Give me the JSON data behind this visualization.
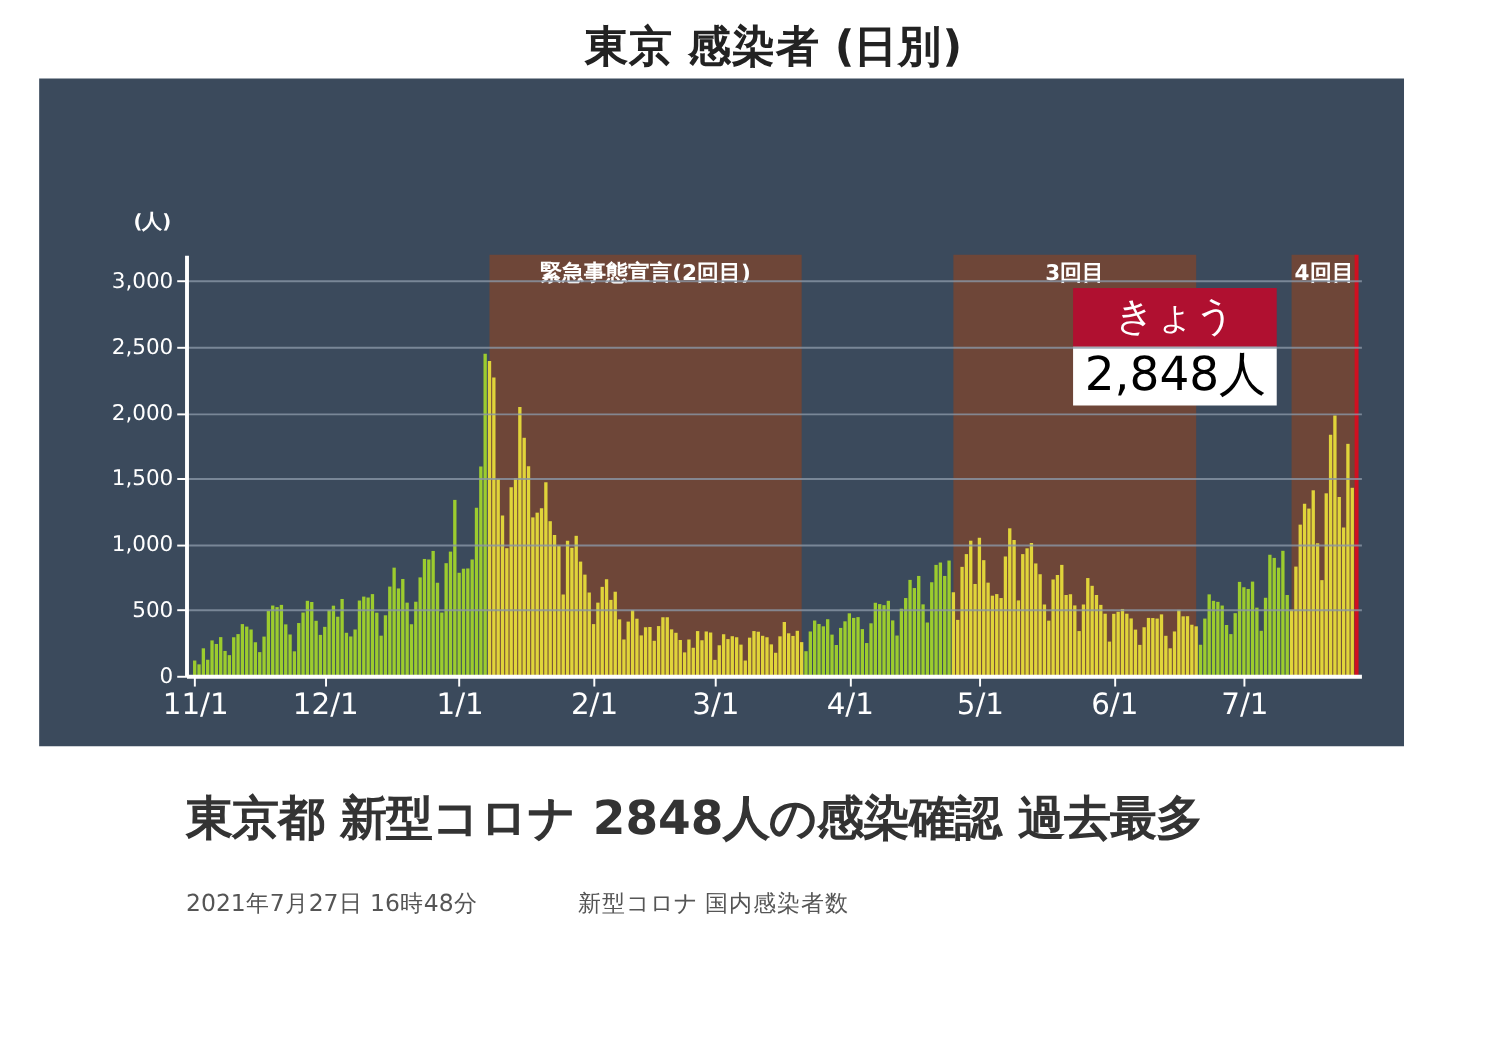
{
  "chart_data": {
    "type": "bar",
    "title": "東京 感染者 (日別)",
    "ylabel": "(人)",
    "x": [
      "2020-11-01",
      "2020-11-02",
      "2020-11-03",
      "2020-11-04",
      "2020-11-05",
      "2020-11-06",
      "2020-11-07",
      "2020-11-08",
      "2020-11-09",
      "2020-11-10",
      "2020-11-11",
      "2020-11-12",
      "2020-11-13",
      "2020-11-14",
      "2020-11-15",
      "2020-11-16",
      "2020-11-17",
      "2020-11-18",
      "2020-11-19",
      "2020-11-20",
      "2020-11-21",
      "2020-11-22",
      "2020-11-23",
      "2020-11-24",
      "2020-11-25",
      "2020-11-26",
      "2020-11-27",
      "2020-11-28",
      "2020-11-29",
      "2020-11-30",
      "2020-12-01",
      "2020-12-02",
      "2020-12-03",
      "2020-12-04",
      "2020-12-05",
      "2020-12-06",
      "2020-12-07",
      "2020-12-08",
      "2020-12-09",
      "2020-12-10",
      "2020-12-11",
      "2020-12-12",
      "2020-12-13",
      "2020-12-14",
      "2020-12-15",
      "2020-12-16",
      "2020-12-17",
      "2020-12-18",
      "2020-12-19",
      "2020-12-20",
      "2020-12-21",
      "2020-12-22",
      "2020-12-23",
      "2020-12-24",
      "2020-12-25",
      "2020-12-26",
      "2020-12-27",
      "2020-12-28",
      "2020-12-29",
      "2020-12-30",
      "2020-12-31",
      "2021-01-01",
      "2021-01-02",
      "2021-01-03",
      "2021-01-04",
      "2021-01-05",
      "2021-01-06",
      "2021-01-07",
      "2021-01-08",
      "2021-01-09",
      "2021-01-10",
      "2021-01-11",
      "2021-01-12",
      "2021-01-13",
      "2021-01-14",
      "2021-01-15",
      "2021-01-16",
      "2021-01-17",
      "2021-01-18",
      "2021-01-19",
      "2021-01-20",
      "2021-01-21",
      "2021-01-22",
      "2021-01-23",
      "2021-01-24",
      "2021-01-25",
      "2021-01-26",
      "2021-01-27",
      "2021-01-28",
      "2021-01-29",
      "2021-01-30",
      "2021-01-31",
      "2021-02-01",
      "2021-02-02",
      "2021-02-03",
      "2021-02-04",
      "2021-02-05",
      "2021-02-06",
      "2021-02-07",
      "2021-02-08",
      "2021-02-09",
      "2021-02-10",
      "2021-02-11",
      "2021-02-12",
      "2021-02-13",
      "2021-02-14",
      "2021-02-15",
      "2021-02-16",
      "2021-02-17",
      "2021-02-18",
      "2021-02-19",
      "2021-02-20",
      "2021-02-21",
      "2021-02-22",
      "2021-02-23",
      "2021-02-24",
      "2021-02-25",
      "2021-02-26",
      "2021-02-27",
      "2021-02-28",
      "2021-03-01",
      "2021-03-02",
      "2021-03-03",
      "2021-03-04",
      "2021-03-05",
      "2021-03-06",
      "2021-03-07",
      "2021-03-08",
      "2021-03-09",
      "2021-03-10",
      "2021-03-11",
      "2021-03-12",
      "2021-03-13",
      "2021-03-14",
      "2021-03-15",
      "2021-03-16",
      "2021-03-17",
      "2021-03-18",
      "2021-03-19",
      "2021-03-20",
      "2021-03-21",
      "2021-03-22",
      "2021-03-23",
      "2021-03-24",
      "2021-03-25",
      "2021-03-26",
      "2021-03-27",
      "2021-03-28",
      "2021-03-29",
      "2021-03-30",
      "2021-03-31",
      "2021-04-01",
      "2021-04-02",
      "2021-04-03",
      "2021-04-04",
      "2021-04-05",
      "2021-04-06",
      "2021-04-07",
      "2021-04-08",
      "2021-04-09",
      "2021-04-10",
      "2021-04-11",
      "2021-04-12",
      "2021-04-13",
      "2021-04-14",
      "2021-04-15",
      "2021-04-16",
      "2021-04-17",
      "2021-04-18",
      "2021-04-19",
      "2021-04-20",
      "2021-04-21",
      "2021-04-22",
      "2021-04-23",
      "2021-04-24",
      "2021-04-25",
      "2021-04-26",
      "2021-04-27",
      "2021-04-28",
      "2021-04-29",
      "2021-04-30",
      "2021-05-01",
      "2021-05-02",
      "2021-05-03",
      "2021-05-04",
      "2021-05-05",
      "2021-05-06",
      "2021-05-07",
      "2021-05-08",
      "2021-05-09",
      "2021-05-10",
      "2021-05-11",
      "2021-05-12",
      "2021-05-13",
      "2021-05-14",
      "2021-05-15",
      "2021-05-16",
      "2021-05-17",
      "2021-05-18",
      "2021-05-19",
      "2021-05-20",
      "2021-05-21",
      "2021-05-22",
      "2021-05-23",
      "2021-05-24",
      "2021-05-25",
      "2021-05-26",
      "2021-05-27",
      "2021-05-28",
      "2021-05-29",
      "2021-05-30",
      "2021-05-31",
      "2021-06-01",
      "2021-06-02",
      "2021-06-03",
      "2021-06-04",
      "2021-06-05",
      "2021-06-06",
      "2021-06-07",
      "2021-06-08",
      "2021-06-09",
      "2021-06-10",
      "2021-06-11",
      "2021-06-12",
      "2021-06-13",
      "2021-06-14",
      "2021-06-15",
      "2021-06-16",
      "2021-06-17",
      "2021-06-18",
      "2021-06-19",
      "2021-06-20",
      "2021-06-21",
      "2021-06-22",
      "2021-06-23",
      "2021-06-24",
      "2021-06-25",
      "2021-06-26",
      "2021-06-27",
      "2021-06-28",
      "2021-06-29",
      "2021-06-30",
      "2021-07-01",
      "2021-07-02",
      "2021-07-03",
      "2021-07-04",
      "2021-07-05",
      "2021-07-06",
      "2021-07-07",
      "2021-07-08",
      "2021-07-09",
      "2021-07-10",
      "2021-07-11",
      "2021-07-12",
      "2021-07-13",
      "2021-07-14",
      "2021-07-15",
      "2021-07-16",
      "2021-07-17",
      "2021-07-18",
      "2021-07-19",
      "2021-07-20",
      "2021-07-21",
      "2021-07-22",
      "2021-07-23",
      "2021-07-24",
      "2021-07-25",
      "2021-07-26"
    ],
    "values": [
      116,
      87,
      209,
      122,
      269,
      242,
      294,
      189,
      157,
      293,
      317,
      393,
      374,
      352,
      255,
      180,
      298,
      493,
      534,
      522,
      539,
      391,
      314,
      186,
      401,
      481,
      570,
      561,
      418,
      311,
      372,
      500,
      533,
      449,
      584,
      327,
      299,
      352,
      572,
      602,
      595,
      621,
      480,
      305,
      460,
      678,
      822,
      664,
      736,
      556,
      392,
      563,
      748,
      888,
      884,
      949,
      708,
      481,
      856,
      944,
      1337,
      783,
      814,
      816,
      884,
      1278,
      1591,
      2447,
      2392,
      2268,
      1494,
      1219,
      970,
      1433,
      1502,
      2044,
      1809,
      1592,
      1204,
      1240,
      1274,
      1471,
      1175,
      1070,
      986,
      618,
      1026,
      973,
      1064,
      868,
      769,
      633,
      393,
      556,
      676,
      734,
      577,
      639,
      429,
      276,
      412,
      500,
      434,
      307,
      369,
      371,
      266,
      378,
      445,
      445,
      353,
      327,
      272,
      178,
      275,
      213,
      340,
      270,
      337,
      329,
      121,
      232,
      316,
      279,
      301,
      293,
      237,
      116,
      290,
      340,
      335,
      304,
      293,
      239,
      175,
      300,
      409,
      323,
      303,
      342,
      256,
      187,
      337,
      420,
      394,
      376,
      430,
      313,
      234,
      364,
      414,
      475,
      440,
      446,
      355,
      249,
      399,
      555,
      545,
      537,
      570,
      421,
      306,
      510,
      591,
      729,
      667,
      759,
      543,
      405,
      711,
      843,
      861,
      759,
      876,
      635,
      425,
      828,
      925,
      1027,
      698,
      1050,
      879,
      708,
      609,
      621,
      591,
      907,
      1121,
      1032,
      573,
      925,
      969,
      1010,
      854,
      772,
      542,
      419,
      732,
      766,
      843,
      614,
      620,
      535,
      340,
      542,
      743,
      684,
      614,
      539,
      472,
      260,
      471,
      487,
      508,
      472,
      436,
      351,
      235,
      369,
      440,
      439,
      435,
      467,
      304,
      209,
      337,
      501,
      452,
      453,
      388,
      376,
      236,
      435,
      619,
      570,
      562,
      534,
      386,
      317,
      476,
      714,
      673,
      660,
      716,
      518,
      342,
      593,
      920,
      896,
      822,
      950,
      614,
      502,
      830,
      1149,
      1308,
      1271,
      1410,
      1008,
      727,
      1387,
      1832,
      1979,
      1359,
      1128,
      1763,
      1429
    ],
    "colors": [
      "#9ccc2e",
      "#9ccc2e",
      "#9ccc2e",
      "#9ccc2e",
      "#9ccc2e",
      "#9ccc2e",
      "#9ccc2e",
      "#9ccc2e",
      "#9ccc2e",
      "#9ccc2e",
      "#9ccc2e",
      "#9ccc2e",
      "#9ccc2e",
      "#9ccc2e",
      "#9ccc2e",
      "#9ccc2e",
      "#9ccc2e",
      "#9ccc2e",
      "#9ccc2e",
      "#9ccc2e",
      "#9ccc2e",
      "#9ccc2e",
      "#9ccc2e",
      "#9ccc2e",
      "#9ccc2e",
      "#9ccc2e",
      "#9ccc2e",
      "#9ccc2e",
      "#9ccc2e",
      "#9ccc2e",
      "#9ccc2e",
      "#9ccc2e",
      "#9ccc2e",
      "#9ccc2e",
      "#9ccc2e",
      "#9ccc2e",
      "#9ccc2e",
      "#9ccc2e",
      "#9ccc2e",
      "#9ccc2e",
      "#9ccc2e",
      "#9ccc2e",
      "#9ccc2e",
      "#9ccc2e",
      "#9ccc2e",
      "#9ccc2e",
      "#9ccc2e",
      "#9ccc2e",
      "#9ccc2e",
      "#9ccc2e",
      "#9ccc2e",
      "#9ccc2e",
      "#9ccc2e",
      "#9ccc2e",
      "#9ccc2e",
      "#9ccc2e",
      "#9ccc2e",
      "#9ccc2e",
      "#9ccc2e",
      "#9ccc2e",
      "#9ccc2e",
      "#9ccc2e",
      "#9ccc2e",
      "#9ccc2e",
      "#9ccc2e",
      "#9ccc2e",
      "#9ccc2e",
      "#9ccc2e",
      "#e0d43a",
      "#e0d43a",
      "#e0d43a",
      "#e0d43a",
      "#e0d43a",
      "#e0d43a",
      "#e0d43a",
      "#e0d43a",
      "#e0d43a",
      "#e0d43a",
      "#e0d43a",
      "#e0d43a",
      "#e0d43a",
      "#e0d43a",
      "#e0d43a",
      "#e0d43a",
      "#e0d43a",
      "#e0d43a",
      "#e0d43a",
      "#e0d43a",
      "#e0d43a",
      "#e0d43a",
      "#e0d43a",
      "#e0d43a",
      "#e0d43a",
      "#e0d43a",
      "#e0d43a",
      "#e0d43a",
      "#e0d43a",
      "#e0d43a",
      "#e0d43a",
      "#e0d43a",
      "#e0d43a",
      "#e0d43a",
      "#e0d43a",
      "#e0d43a",
      "#e0d43a",
      "#e0d43a",
      "#e0d43a",
      "#e0d43a",
      "#e0d43a",
      "#e0d43a",
      "#e0d43a",
      "#e0d43a",
      "#e0d43a",
      "#e0d43a",
      "#e0d43a",
      "#e0d43a",
      "#e0d43a",
      "#e0d43a",
      "#e0d43a",
      "#e0d43a",
      "#e0d43a",
      "#e0d43a",
      "#e0d43a",
      "#e0d43a",
      "#e0d43a",
      "#e0d43a",
      "#e0d43a",
      "#e0d43a",
      "#e0d43a",
      "#e0d43a",
      "#e0d43a",
      "#e0d43a",
      "#e0d43a",
      "#e0d43a",
      "#e0d43a",
      "#e0d43a",
      "#e0d43a",
      "#e0d43a",
      "#e0d43a",
      "#e0d43a",
      "#e0d43a",
      "#9ccc2e",
      "#9ccc2e",
      "#9ccc2e",
      "#9ccc2e",
      "#9ccc2e",
      "#9ccc2e",
      "#9ccc2e",
      "#9ccc2e",
      "#9ccc2e",
      "#9ccc2e",
      "#9ccc2e",
      "#9ccc2e",
      "#9ccc2e",
      "#9ccc2e",
      "#9ccc2e",
      "#9ccc2e",
      "#9ccc2e",
      "#9ccc2e",
      "#9ccc2e",
      "#9ccc2e",
      "#9ccc2e",
      "#9ccc2e",
      "#9ccc2e",
      "#9ccc2e",
      "#9ccc2e",
      "#9ccc2e",
      "#9ccc2e",
      "#9ccc2e",
      "#9ccc2e",
      "#9ccc2e",
      "#9ccc2e",
      "#9ccc2e",
      "#9ccc2e",
      "#9ccc2e",
      "#e0d43a",
      "#e0d43a",
      "#e0d43a",
      "#e0d43a",
      "#e0d43a",
      "#e0d43a",
      "#e0d43a",
      "#e0d43a",
      "#e0d43a",
      "#e0d43a",
      "#e0d43a",
      "#e0d43a",
      "#e0d43a",
      "#e0d43a",
      "#e0d43a",
      "#e0d43a",
      "#e0d43a",
      "#e0d43a",
      "#e0d43a",
      "#e0d43a",
      "#e0d43a",
      "#e0d43a",
      "#e0d43a",
      "#e0d43a",
      "#e0d43a",
      "#e0d43a",
      "#e0d43a",
      "#e0d43a",
      "#e0d43a",
      "#e0d43a",
      "#e0d43a",
      "#e0d43a",
      "#e0d43a",
      "#e0d43a",
      "#e0d43a",
      "#e0d43a",
      "#e0d43a",
      "#e0d43a",
      "#e0d43a",
      "#e0d43a",
      "#e0d43a",
      "#e0d43a",
      "#e0d43a",
      "#e0d43a",
      "#e0d43a",
      "#e0d43a",
      "#e0d43a",
      "#e0d43a",
      "#e0d43a",
      "#e0d43a",
      "#e0d43a",
      "#e0d43a",
      "#e0d43a",
      "#e0d43a",
      "#e0d43a",
      "#e0d43a",
      "#e0d43a",
      "#9ccc2e",
      "#9ccc2e",
      "#9ccc2e",
      "#9ccc2e",
      "#9ccc2e",
      "#9ccc2e",
      "#9ccc2e",
      "#9ccc2e",
      "#9ccc2e",
      "#9ccc2e",
      "#9ccc2e",
      "#9ccc2e",
      "#9ccc2e",
      "#9ccc2e",
      "#9ccc2e",
      "#9ccc2e",
      "#9ccc2e",
      "#9ccc2e",
      "#9ccc2e",
      "#9ccc2e",
      "#9ccc2e",
      "#e0d43a",
      "#e0d43a",
      "#e0d43a",
      "#e0d43a",
      "#e0d43a",
      "#e0d43a",
      "#e0d43a",
      "#e0d43a",
      "#e0d43a",
      "#e0d43a",
      "#e0d43a",
      "#e0d43a",
      "#e0d43a",
      "#e0d43a",
      "#e0d43a"
    ],
    "xlim": [
      "2020-10-30",
      "2021-07-28"
    ],
    "xticks": [
      {
        "value": "2020-11-01",
        "label": "11/1"
      },
      {
        "value": "2020-12-01",
        "label": "12/1"
      },
      {
        "value": "2021-01-01",
        "label": "1/1"
      },
      {
        "value": "2021-02-01",
        "label": "2/1"
      },
      {
        "value": "2021-03-01",
        "label": "3/1"
      },
      {
        "value": "2021-04-01",
        "label": "4/1"
      },
      {
        "value": "2021-05-01",
        "label": "5/1"
      },
      {
        "value": "2021-06-01",
        "label": "6/1"
      },
      {
        "value": "2021-07-01",
        "label": "7/1"
      }
    ],
    "ylim": [
      0,
      3200
    ],
    "yticks": [
      0,
      500,
      {
        "value": 1000,
        "label": "1,000"
      },
      {
        "value": 1500,
        "label": "1,500"
      },
      {
        "value": 2000,
        "label": "2,000"
      },
      {
        "value": 2500,
        "label": "2,500"
      },
      {
        "value": 3000,
        "label": "3,000"
      }
    ],
    "grid": "y",
    "bands": [
      {
        "axis": "x",
        "from": "2021-01-08",
        "to": "2021-03-21",
        "label": "緊急事態宣言(2回目)",
        "color": "#6e4638"
      },
      {
        "axis": "x",
        "from": "2021-04-25",
        "to": "2021-06-20",
        "label": "3回目",
        "color": "#6e4638"
      },
      {
        "axis": "x",
        "from": "2021-07-12",
        "to": "2021-07-27",
        "label": "4回目",
        "color": "#6e4638"
      }
    ],
    "ref_lines": [
      {
        "axis": "x",
        "value": "2021-07-27",
        "color": "#d01020"
      }
    ],
    "annotations": [
      "きょう",
      "2,848人",
      "東京都 新型コロナ 2848人の感染確認 過去最多",
      "2021年7月27日 16時48分",
      "新型コロナ 国内感染者数"
    ]
  }
}
